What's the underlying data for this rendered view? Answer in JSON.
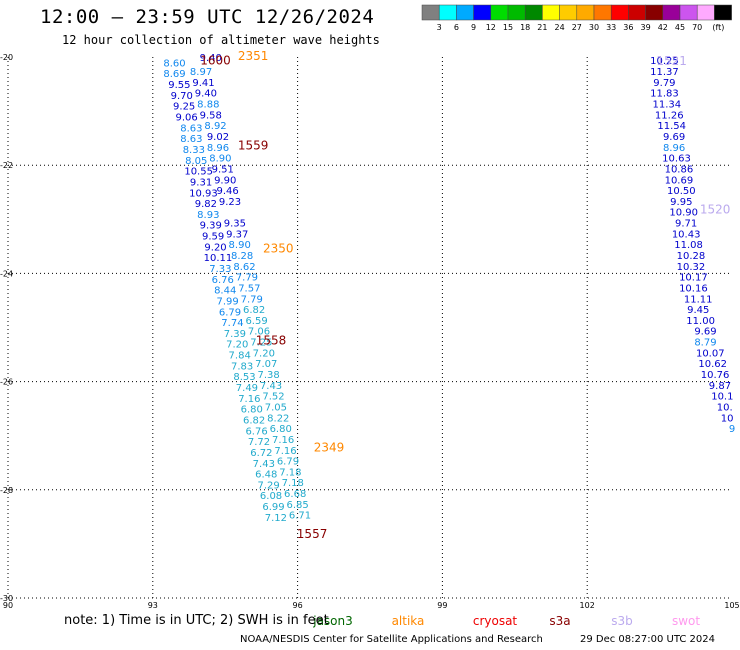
{
  "header": {
    "title": "12:00 — 23:59 UTC 12/26/2024",
    "subtitle": "12 hour collection of altimeter wave heights"
  },
  "colorbar": {
    "colors": [
      "#808080",
      "#00ffff",
      "#00aaff",
      "#0000ff",
      "#00dd00",
      "#00bb00",
      "#008800",
      "#ffff00",
      "#ffcc00",
      "#ffaa00",
      "#ff7700",
      "#ff0000",
      "#cc0000",
      "#880000",
      "#990099",
      "#cc55ee",
      "#ffaaff",
      "#000000"
    ],
    "labels": [
      "3",
      "6",
      "9",
      "12",
      "15",
      "18",
      "21",
      "24",
      "27",
      "30",
      "33",
      "36",
      "39",
      "42",
      "45",
      "70"
    ],
    "unit": "(ft)"
  },
  "satellites": [
    {
      "name": "jason3",
      "color": "#006600"
    },
    {
      "name": "altika",
      "color": "#ff8800"
    },
    {
      "name": "cryosat",
      "color": "#ee0000"
    },
    {
      "name": "s3a",
      "color": "#880000"
    },
    {
      "name": "s3b",
      "color": "#bbaaee"
    },
    {
      "name": "swot",
      "color": "#ff99ee"
    }
  ],
  "footer": {
    "note": "note:  1) Time is in UTC; 2) SWH is in feet",
    "credit": "NOAA/NESDIS Center for Satellite Applications and Research",
    "generated": "29 Dec 08:27:00 UTC 2024"
  },
  "chart_data": {
    "type": "scatter",
    "xlim": [
      90,
      105
    ],
    "ylim": [
      -30,
      -20
    ],
    "x_ticks": [
      "90",
      "93",
      "96",
      "99",
      "102",
      "105"
    ],
    "y_ticks": [
      "-20",
      "-22",
      "-24",
      "-26",
      "-28",
      "-30"
    ],
    "grid": true,
    "pass_labels": [
      {
        "text": "2351",
        "lon": 95.08,
        "lat": -19.96,
        "color": "#ff8800"
      },
      {
        "text": "1600",
        "lon": 94.3,
        "lat": -20.05,
        "color": "#880000"
      },
      {
        "text": "1559",
        "lon": 95.08,
        "lat": -21.62,
        "color": "#880000"
      },
      {
        "text": "2350",
        "lon": 95.6,
        "lat": -23.52,
        "color": "#ff8800"
      },
      {
        "text": "1558",
        "lon": 95.45,
        "lat": -25.22,
        "color": "#880000"
      },
      {
        "text": "2349",
        "lon": 96.65,
        "lat": -27.2,
        "color": "#ff8800"
      },
      {
        "text": "1557",
        "lon": 96.3,
        "lat": -28.8,
        "color": "#880000"
      },
      {
        "text": "1521",
        "lon": 103.75,
        "lat": -20.06,
        "color": "#bbaaee"
      },
      {
        "text": "1520",
        "lon": 104.65,
        "lat": -22.8,
        "color": "#bbaaee"
      }
    ],
    "series": [
      {
        "name": "s3b",
        "points": [
          {
            "lon": 103.6,
            "lat": -20.06,
            "swh": "10.25",
            "color": "#0000cc"
          },
          {
            "lon": 103.6,
            "lat": -20.26,
            "swh": "11.37",
            "color": "#0000cc"
          },
          {
            "lon": 103.6,
            "lat": -20.46,
            "swh": "9.79",
            "color": "#0000cc"
          },
          {
            "lon": 103.6,
            "lat": -20.66,
            "swh": "11.83",
            "color": "#0000cc"
          },
          {
            "lon": 103.65,
            "lat": -20.86,
            "swh": "11.34",
            "color": "#0000cc"
          },
          {
            "lon": 103.7,
            "lat": -21.06,
            "swh": "11.26",
            "color": "#0000cc"
          },
          {
            "lon": 103.75,
            "lat": -21.26,
            "swh": "11.54",
            "color": "#0000cc"
          },
          {
            "lon": 103.8,
            "lat": -21.46,
            "swh": "9.69",
            "color": "#0000cc"
          },
          {
            "lon": 103.8,
            "lat": -21.66,
            "swh": "8.96",
            "color": "#1188ee"
          },
          {
            "lon": 103.85,
            "lat": -21.86,
            "swh": "10.63",
            "color": "#0000cc"
          },
          {
            "lon": 103.9,
            "lat": -22.06,
            "swh": "10.86",
            "color": "#0000cc"
          },
          {
            "lon": 103.9,
            "lat": -22.26,
            "swh": "10.69",
            "color": "#0000cc"
          },
          {
            "lon": 103.95,
            "lat": -22.46,
            "swh": "10.50",
            "color": "#0000cc"
          },
          {
            "lon": 103.95,
            "lat": -22.66,
            "swh": "9.95",
            "color": "#0000cc"
          },
          {
            "lon": 104.0,
            "lat": -22.86,
            "swh": "10.90",
            "color": "#0000cc"
          },
          {
            "lon": 104.05,
            "lat": -23.06,
            "swh": "9.71",
            "color": "#0000cc"
          },
          {
            "lon": 104.05,
            "lat": -23.26,
            "swh": "10.43",
            "color": "#0000cc"
          },
          {
            "lon": 104.1,
            "lat": -23.46,
            "swh": "11.08",
            "color": "#0000cc"
          },
          {
            "lon": 104.15,
            "lat": -23.66,
            "swh": "10.28",
            "color": "#0000cc"
          },
          {
            "lon": 104.15,
            "lat": -23.86,
            "swh": "10.32",
            "color": "#0000cc"
          },
          {
            "lon": 104.2,
            "lat": -24.06,
            "swh": "10.17",
            "color": "#0000cc"
          },
          {
            "lon": 104.2,
            "lat": -24.26,
            "swh": "10.16",
            "color": "#0000cc"
          },
          {
            "lon": 104.3,
            "lat": -24.46,
            "swh": "11.11",
            "color": "#0000cc"
          },
          {
            "lon": 104.3,
            "lat": -24.66,
            "swh": "9.45",
            "color": "#0000cc"
          },
          {
            "lon": 104.35,
            "lat": -24.86,
            "swh": "11.00",
            "color": "#0000cc"
          },
          {
            "lon": 104.45,
            "lat": -25.06,
            "swh": "9.69",
            "color": "#0000cc"
          },
          {
            "lon": 104.45,
            "lat": -25.26,
            "swh": "8.79",
            "color": "#1188ee"
          },
          {
            "lon": 104.55,
            "lat": -25.46,
            "swh": "10.07",
            "color": "#0000cc"
          },
          {
            "lon": 104.6,
            "lat": -25.66,
            "swh": "10.62",
            "color": "#0000cc"
          },
          {
            "lon": 104.65,
            "lat": -25.86,
            "swh": "10.76",
            "color": "#0000cc"
          },
          {
            "lon": 104.75,
            "lat": -26.06,
            "swh": "9.87",
            "color": "#0000cc"
          },
          {
            "lon": 104.8,
            "lat": -26.26,
            "swh": "10.1",
            "color": "#0000cc"
          },
          {
            "lon": 104.85,
            "lat": -26.46,
            "swh": "10.",
            "color": "#0000cc"
          },
          {
            "lon": 104.9,
            "lat": -26.66,
            "swh": "10",
            "color": "#0000cc"
          },
          {
            "lon": 105.0,
            "lat": -26.86,
            "swh": "9",
            "color": "#1188ee"
          }
        ]
      },
      {
        "name": "s3a",
        "points": [
          {
            "lon": 94.2,
            "lat": -20.0,
            "swh": "9.40",
            "color": "#0000cc"
          },
          {
            "lon": 93.45,
            "lat": -20.1,
            "swh": "8.60",
            "color": "#1188ee"
          },
          {
            "lon": 93.45,
            "lat": -20.3,
            "swh": "8.69",
            "color": "#1188ee"
          },
          {
            "lon": 94.0,
            "lat": -20.26,
            "swh": "8.97",
            "color": "#1188ee"
          },
          {
            "lon": 93.55,
            "lat": -20.5,
            "swh": "9.55",
            "color": "#0000cc"
          },
          {
            "lon": 94.05,
            "lat": -20.46,
            "swh": "9.41",
            "color": "#0000cc"
          },
          {
            "lon": 93.6,
            "lat": -20.7,
            "swh": "9.70",
            "color": "#0000cc"
          },
          {
            "lon": 94.1,
            "lat": -20.66,
            "swh": "9.40",
            "color": "#0000cc"
          },
          {
            "lon": 93.65,
            "lat": -20.9,
            "swh": "9.25",
            "color": "#0000cc"
          },
          {
            "lon": 94.15,
            "lat": -20.86,
            "swh": "8.88",
            "color": "#1188ee"
          },
          {
            "lon": 93.7,
            "lat": -21.1,
            "swh": "9.06",
            "color": "#0000cc"
          },
          {
            "lon": 94.2,
            "lat": -21.06,
            "swh": "9.58",
            "color": "#0000cc"
          },
          {
            "lon": 93.8,
            "lat": -21.3,
            "swh": "8.63",
            "color": "#1188ee"
          },
          {
            "lon": 94.3,
            "lat": -21.26,
            "swh": "8.92",
            "color": "#1188ee"
          },
          {
            "lon": 93.8,
            "lat": -21.5,
            "swh": "8.63",
            "color": "#1188ee"
          },
          {
            "lon": 94.35,
            "lat": -21.46,
            "swh": "9.02",
            "color": "#0000cc"
          },
          {
            "lon": 93.85,
            "lat": -21.7,
            "swh": "8.33",
            "color": "#1188ee"
          },
          {
            "lon": 94.35,
            "lat": -21.66,
            "swh": "8.96",
            "color": "#1188ee"
          },
          {
            "lon": 93.9,
            "lat": -21.9,
            "swh": "8.05",
            "color": "#1188ee"
          },
          {
            "lon": 94.4,
            "lat": -21.86,
            "swh": "8.90",
            "color": "#1188ee"
          },
          {
            "lon": 93.95,
            "lat": -22.1,
            "swh": "10.55",
            "color": "#0000cc"
          },
          {
            "lon": 94.45,
            "lat": -22.06,
            "swh": "9.51",
            "color": "#0000cc"
          },
          {
            "lon": 94.0,
            "lat": -22.3,
            "swh": "9.31",
            "color": "#0000cc"
          },
          {
            "lon": 94.5,
            "lat": -22.26,
            "swh": "9.90",
            "color": "#0000cc"
          },
          {
            "lon": 94.05,
            "lat": -22.5,
            "swh": "10.93",
            "color": "#0000cc"
          },
          {
            "lon": 94.55,
            "lat": -22.46,
            "swh": "9.46",
            "color": "#0000cc"
          },
          {
            "lon": 94.1,
            "lat": -22.7,
            "swh": "9.82",
            "color": "#0000cc"
          },
          {
            "lon": 94.6,
            "lat": -22.66,
            "swh": "9.23",
            "color": "#0000cc"
          },
          {
            "lon": 94.15,
            "lat": -22.9,
            "swh": "8.93",
            "color": "#1188ee"
          },
          {
            "lon": 94.2,
            "lat": -23.1,
            "swh": "9.39",
            "color": "#0000cc"
          },
          {
            "lon": 94.7,
            "lat": -23.06,
            "swh": "9.35",
            "color": "#0000cc"
          },
          {
            "lon": 94.25,
            "lat": -23.3,
            "swh": "9.59",
            "color": "#0000cc"
          },
          {
            "lon": 94.75,
            "lat": -23.26,
            "swh": "9.37",
            "color": "#0000cc"
          },
          {
            "lon": 94.3,
            "lat": -23.5,
            "swh": "9.20",
            "color": "#0000cc"
          },
          {
            "lon": 94.8,
            "lat": -23.46,
            "swh": "8.90",
            "color": "#1188ee"
          },
          {
            "lon": 94.35,
            "lat": -23.7,
            "swh": "10.11",
            "color": "#0000cc"
          },
          {
            "lon": 94.85,
            "lat": -23.66,
            "swh": "8.28",
            "color": "#1188ee"
          },
          {
            "lon": 94.4,
            "lat": -23.9,
            "swh": "7.33",
            "color": "#1188ee"
          },
          {
            "lon": 94.9,
            "lat": -23.86,
            "swh": "8.62",
            "color": "#1188ee"
          },
          {
            "lon": 94.45,
            "lat": -24.1,
            "swh": "6.76",
            "color": "#1188ee"
          },
          {
            "lon": 94.95,
            "lat": -24.06,
            "swh": "7.79",
            "color": "#1188ee"
          },
          {
            "lon": 94.5,
            "lat": -24.3,
            "swh": "8.44",
            "color": "#1188ee"
          },
          {
            "lon": 95.0,
            "lat": -24.26,
            "swh": "7.57",
            "color": "#1188ee"
          },
          {
            "lon": 94.55,
            "lat": -24.5,
            "swh": "7.99",
            "color": "#1188ee"
          },
          {
            "lon": 95.05,
            "lat": -24.46,
            "swh": "7.79",
            "color": "#1188ee"
          },
          {
            "lon": 94.6,
            "lat": -24.7,
            "swh": "6.79",
            "color": "#1188ee"
          },
          {
            "lon": 95.1,
            "lat": -24.66,
            "swh": "6.82",
            "color": "#22aacc"
          },
          {
            "lon": 94.65,
            "lat": -24.9,
            "swh": "7.74",
            "color": "#1188ee"
          },
          {
            "lon": 95.15,
            "lat": -24.86,
            "swh": "6.59",
            "color": "#22aacc"
          },
          {
            "lon": 94.7,
            "lat": -25.1,
            "swh": "7.39",
            "color": "#22aacc"
          },
          {
            "lon": 95.2,
            "lat": -25.06,
            "swh": "7.06",
            "color": "#22aacc"
          },
          {
            "lon": 94.75,
            "lat": -25.3,
            "swh": "7.20",
            "color": "#22aacc"
          },
          {
            "lon": 95.25,
            "lat": -25.26,
            "swh": "7.25",
            "color": "#22aacc"
          },
          {
            "lon": 94.8,
            "lat": -25.5,
            "swh": "7.84",
            "color": "#22aacc"
          },
          {
            "lon": 95.3,
            "lat": -25.46,
            "swh": "7.20",
            "color": "#22aacc"
          },
          {
            "lon": 94.85,
            "lat": -25.7,
            "swh": "7.83",
            "color": "#22aacc"
          },
          {
            "lon": 95.35,
            "lat": -25.66,
            "swh": "7.07",
            "color": "#22aacc"
          },
          {
            "lon": 94.9,
            "lat": -25.9,
            "swh": "8.53",
            "color": "#22aacc"
          },
          {
            "lon": 95.4,
            "lat": -25.86,
            "swh": "7.38",
            "color": "#22aacc"
          },
          {
            "lon": 94.95,
            "lat": -26.1,
            "swh": "7.49",
            "color": "#22aacc"
          },
          {
            "lon": 95.45,
            "lat": -26.06,
            "swh": "7.43",
            "color": "#22aacc"
          },
          {
            "lon": 95.0,
            "lat": -26.3,
            "swh": "7.16",
            "color": "#22aacc"
          },
          {
            "lon": 95.5,
            "lat": -26.26,
            "swh": "7.52",
            "color": "#22aacc"
          },
          {
            "lon": 95.05,
            "lat": -26.5,
            "swh": "6.80",
            "color": "#22aacc"
          },
          {
            "lon": 95.55,
            "lat": -26.46,
            "swh": "7.05",
            "color": "#22aacc"
          },
          {
            "lon": 95.1,
            "lat": -26.7,
            "swh": "6.82",
            "color": "#22aacc"
          },
          {
            "lon": 95.6,
            "lat": -26.66,
            "swh": "8.22",
            "color": "#22aacc"
          },
          {
            "lon": 95.15,
            "lat": -26.9,
            "swh": "6.76",
            "color": "#22aacc"
          },
          {
            "lon": 95.65,
            "lat": -26.86,
            "swh": "6.80",
            "color": "#22aacc"
          },
          {
            "lon": 95.2,
            "lat": -27.1,
            "swh": "7.72",
            "color": "#22aacc"
          },
          {
            "lon": 95.7,
            "lat": -27.06,
            "swh": "7.16",
            "color": "#22aacc"
          },
          {
            "lon": 95.25,
            "lat": -27.3,
            "swh": "6.72",
            "color": "#22aacc"
          },
          {
            "lon": 95.75,
            "lat": -27.26,
            "swh": "7.16",
            "color": "#22aacc"
          },
          {
            "lon": 95.3,
            "lat": -27.5,
            "swh": "7.43",
            "color": "#22aacc"
          },
          {
            "lon": 95.8,
            "lat": -27.46,
            "swh": "6.79",
            "color": "#22aacc"
          },
          {
            "lon": 95.35,
            "lat": -27.7,
            "swh": "6.48",
            "color": "#22aacc"
          },
          {
            "lon": 95.85,
            "lat": -27.66,
            "swh": "7.18",
            "color": "#22aacc"
          },
          {
            "lon": 95.4,
            "lat": -27.9,
            "swh": "7.29",
            "color": "#22aacc"
          },
          {
            "lon": 95.9,
            "lat": -27.86,
            "swh": "7.18",
            "color": "#22aacc"
          },
          {
            "lon": 95.45,
            "lat": -28.1,
            "swh": "6.08",
            "color": "#22aacc"
          },
          {
            "lon": 95.95,
            "lat": -28.06,
            "swh": "6.68",
            "color": "#22aacc"
          },
          {
            "lon": 95.5,
            "lat": -28.3,
            "swh": "6.99",
            "color": "#22aacc"
          },
          {
            "lon": 96.0,
            "lat": -28.26,
            "swh": "6.85",
            "color": "#22aacc"
          },
          {
            "lon": 95.55,
            "lat": -28.5,
            "swh": "7.12",
            "color": "#22aacc"
          },
          {
            "lon": 96.05,
            "lat": -28.46,
            "swh": "6.71",
            "color": "#22aacc"
          }
        ]
      }
    ]
  }
}
